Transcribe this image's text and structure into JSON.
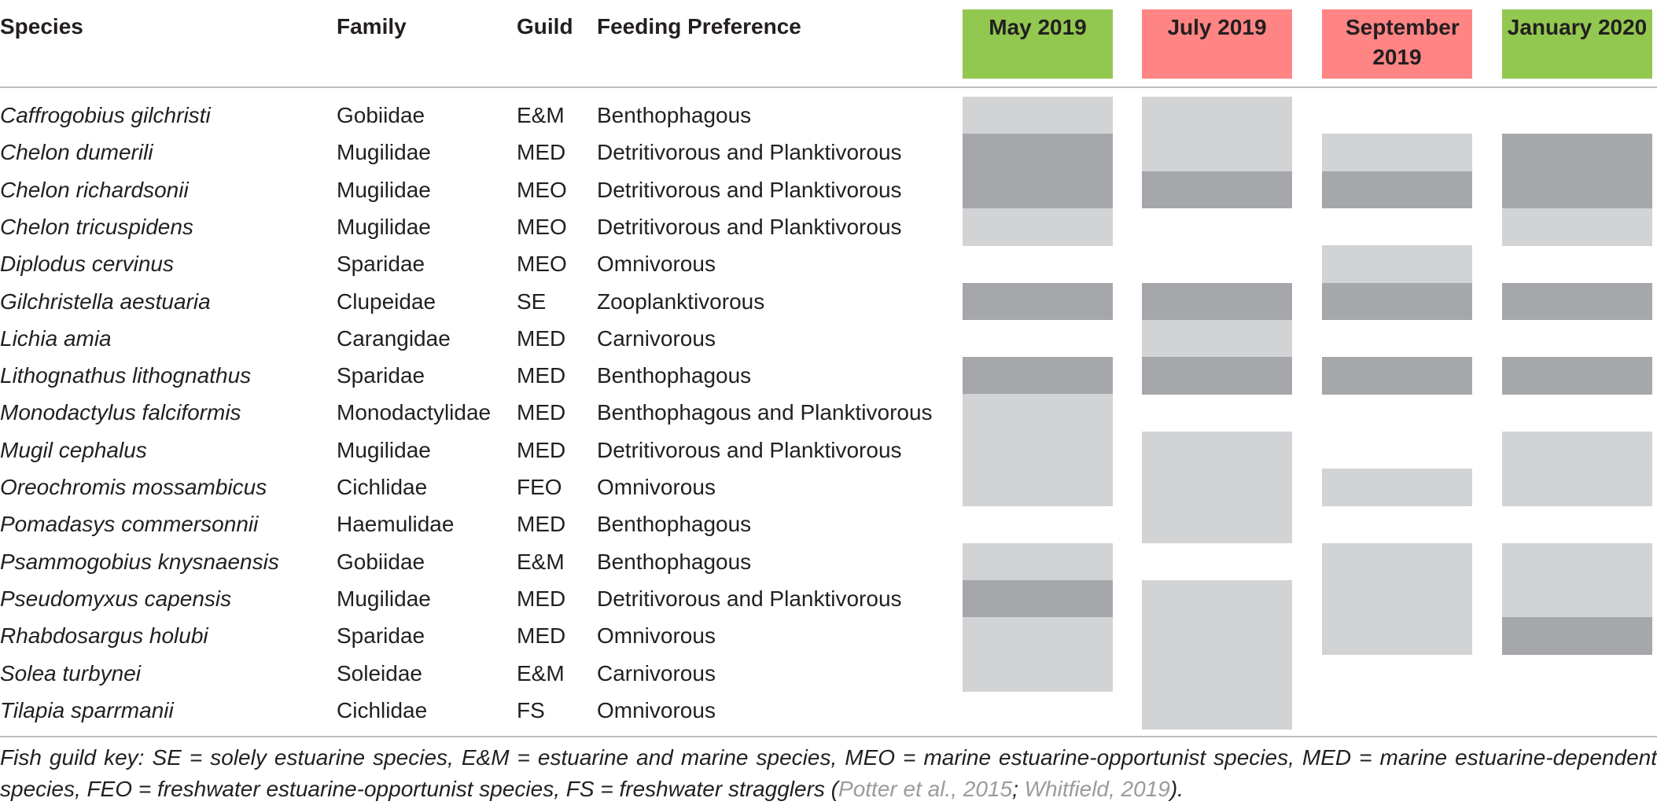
{
  "headers": {
    "species": "Species",
    "family": "Family",
    "guild": "Guild",
    "feeding": "Feeding Preference"
  },
  "months": [
    {
      "label": "May 2019",
      "color": "#92c850"
    },
    {
      "label": "July 2019",
      "color": "#ff8484"
    },
    {
      "label": "September 2019",
      "color": "#ff8484"
    },
    {
      "label": "January 2020",
      "color": "#92c850"
    }
  ],
  "rows": [
    {
      "species": "Caffrogobius gilchristi",
      "family": "Gobiidae",
      "guild": "E&M",
      "feeding": "Benthophagous",
      "presence": [
        "light",
        "light",
        "none",
        "none"
      ]
    },
    {
      "species": "Chelon dumerili",
      "family": "Mugilidae",
      "guild": "MED",
      "feeding": "Detritivorous and Planktivorous",
      "presence": [
        "dark",
        "light",
        "light",
        "dark"
      ]
    },
    {
      "species": "Chelon richardsonii",
      "family": "Mugilidae",
      "guild": "MEO",
      "feeding": "Detritivorous and Planktivorous",
      "presence": [
        "dark",
        "dark",
        "dark",
        "dark"
      ]
    },
    {
      "species": "Chelon tricuspidens",
      "family": "Mugilidae",
      "guild": "MEO",
      "feeding": "Detritivorous and Planktivorous",
      "presence": [
        "light",
        "none",
        "none",
        "light"
      ]
    },
    {
      "species": "Diplodus cervinus",
      "family": "Sparidae",
      "guild": "MEO",
      "feeding": "Omnivorous",
      "presence": [
        "none",
        "none",
        "light",
        "none"
      ]
    },
    {
      "species": "Gilchristella aestuaria",
      "family": "Clupeidae",
      "guild": "SE",
      "feeding": "Zooplanktivorous",
      "presence": [
        "dark",
        "dark",
        "dark",
        "dark"
      ]
    },
    {
      "species": "Lichia amia",
      "family": "Carangidae",
      "guild": "MED",
      "feeding": "Carnivorous",
      "presence": [
        "none",
        "light",
        "none",
        "none"
      ]
    },
    {
      "species": "Lithognathus lithognathus",
      "family": "Sparidae",
      "guild": "MED",
      "feeding": "Benthophagous",
      "presence": [
        "dark",
        "dark",
        "dark",
        "dark"
      ]
    },
    {
      "species": "Monodactylus falciformis",
      "family": "Monodactylidae",
      "guild": "MED",
      "feeding": "Benthophagous and Planktivorous",
      "presence": [
        "light",
        "none",
        "none",
        "none"
      ]
    },
    {
      "species": "Mugil cephalus",
      "family": "Mugilidae",
      "guild": "MED",
      "feeding": "Detritivorous and Planktivorous",
      "presence": [
        "light",
        "light",
        "none",
        "light"
      ]
    },
    {
      "species": "Oreochromis mossambicus",
      "family": "Cichlidae",
      "guild": "FEO",
      "feeding": "Omnivorous",
      "presence": [
        "light",
        "light",
        "light",
        "light"
      ]
    },
    {
      "species": "Pomadasys commersonnii",
      "family": "Haemulidae",
      "guild": "MED",
      "feeding": "Benthophagous",
      "presence": [
        "none",
        "light",
        "none",
        "none"
      ]
    },
    {
      "species": "Psammogobius knysnaensis",
      "family": "Gobiidae",
      "guild": "E&M",
      "feeding": "Benthophagous",
      "presence": [
        "light",
        "none",
        "light",
        "light"
      ]
    },
    {
      "species": "Pseudomyxus capensis",
      "family": "Mugilidae",
      "guild": "MED",
      "feeding": "Detritivorous and Planktivorous",
      "presence": [
        "dark",
        "light",
        "light",
        "light"
      ]
    },
    {
      "species": "Rhabdosargus holubi",
      "family": "Sparidae",
      "guild": "MED",
      "feeding": "Omnivorous",
      "presence": [
        "light",
        "light",
        "light",
        "dark"
      ]
    },
    {
      "species": "Solea turbynei",
      "family": "Soleidae",
      "guild": "E&M",
      "feeding": "Carnivorous",
      "presence": [
        "light",
        "light",
        "none",
        "none"
      ]
    },
    {
      "species": "Tilapia sparrmanii",
      "family": "Cichlidae",
      "guild": "FS",
      "feeding": "Omnivorous",
      "presence": [
        "none",
        "light",
        "none",
        "none"
      ]
    }
  ],
  "footnote": {
    "text": "Fish guild key: SE = solely estuarine species, E&M = estuarine and marine species, MEO = marine estuarine-opportunist species, MED = marine estuarine-dependent species, FEO = freshwater estuarine-opportunist species, FS = freshwater stragglers (",
    "ref1": "Potter et al., 2015",
    "sep": "; ",
    "ref2": "Whitfield, 2019",
    "end": ")."
  }
}
